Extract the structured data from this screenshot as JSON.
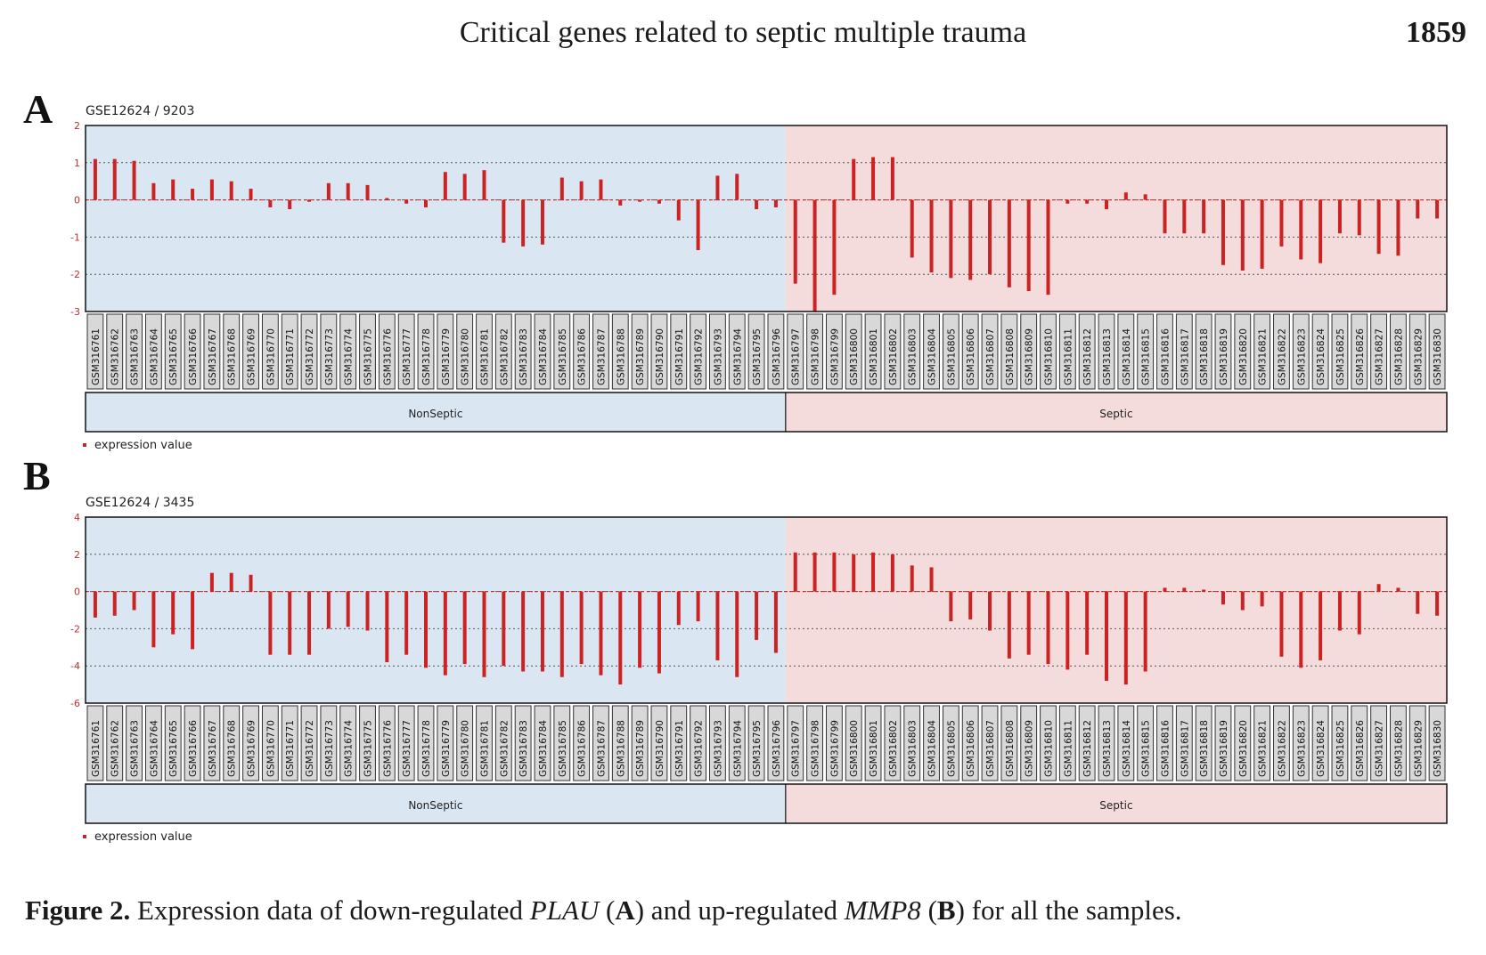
{
  "header": {
    "running_title": "Critical genes related to septic multiple trauma",
    "page_number": "1859"
  },
  "caption": {
    "figure_label": "Figure 2.",
    "text_1": " Expression data of down-regulated ",
    "gene_1": "PLAU",
    "text_2": " (",
    "letter_1": "A",
    "text_3": ") and up-regulated ",
    "gene_2": "MMP8",
    "text_4": " (",
    "letter_2": "B",
    "text_5": ") for all the samples."
  },
  "colors": {
    "nonseptic_bg": "#dbe6f3",
    "septic_bg": "#f4dcdc",
    "bar": "#cc2222",
    "label_box": "#d8d8d8"
  },
  "chart_data": [
    {
      "panel": "A",
      "type": "bar",
      "title": "GSE12624 / 9203",
      "legend": "expression value",
      "legend_position": "bottom-left",
      "grid": true,
      "ylim": [
        -3,
        2
      ],
      "yticks": [
        "2",
        "1",
        "0",
        "-1",
        "-2",
        "-3"
      ],
      "groups": [
        {
          "name": "NonSeptic",
          "count": 36
        },
        {
          "name": "Septic",
          "count": 34
        }
      ],
      "categories": [
        "GSM316761",
        "GSM316762",
        "GSM316763",
        "GSM316764",
        "GSM316765",
        "GSM316766",
        "GSM316767",
        "GSM316768",
        "GSM316769",
        "GSM316770",
        "GSM316771",
        "GSM316772",
        "GSM316773",
        "GSM316774",
        "GSM316775",
        "GSM316776",
        "GSM316777",
        "GSM316778",
        "GSM316779",
        "GSM316780",
        "GSM316781",
        "GSM316782",
        "GSM316783",
        "GSM316784",
        "GSM316785",
        "GSM316786",
        "GSM316787",
        "GSM316788",
        "GSM316789",
        "GSM316790",
        "GSM316791",
        "GSM316792",
        "GSM316793",
        "GSM316794",
        "GSM316795",
        "GSM316796",
        "GSM316797",
        "GSM316798",
        "GSM316799",
        "GSM316800",
        "GSM316801",
        "GSM316802",
        "GSM316803",
        "GSM316804",
        "GSM316805",
        "GSM316806",
        "GSM316807",
        "GSM316808",
        "GSM316809",
        "GSM316810",
        "GSM316811",
        "GSM316812",
        "GSM316813",
        "GSM316814",
        "GSM316815",
        "GSM316816",
        "GSM316817",
        "GSM316818",
        "GSM316819",
        "GSM316820",
        "GSM316821",
        "GSM316822",
        "GSM316823",
        "GSM316824",
        "GSM316825",
        "GSM316826",
        "GSM316827",
        "GSM316828",
        "GSM316829",
        "GSM316830"
      ],
      "values": [
        1.1,
        1.1,
        1.05,
        0.45,
        0.55,
        0.3,
        0.55,
        0.5,
        0.3,
        -0.2,
        -0.25,
        -0.05,
        0.45,
        0.45,
        0.4,
        0.05,
        -0.1,
        -0.2,
        0.75,
        0.7,
        0.8,
        -1.15,
        -1.25,
        -1.2,
        0.6,
        0.5,
        0.55,
        -0.15,
        -0.05,
        -0.1,
        -0.55,
        -1.35,
        0.65,
        0.7,
        -0.25,
        -0.2,
        -2.25,
        -3.0,
        -2.55,
        1.1,
        1.15,
        1.15,
        -1.55,
        -1.95,
        -2.1,
        -2.15,
        -2.0,
        -2.35,
        -2.45,
        -2.55,
        -0.1,
        -0.1,
        -0.25,
        0.2,
        0.15,
        -0.9,
        -0.9,
        -0.9,
        -1.75,
        -1.9,
        -1.85,
        -1.25,
        -1.6,
        -1.7,
        -0.9,
        -0.95,
        -1.45,
        -1.5,
        -0.5,
        -0.5
      ]
    },
    {
      "panel": "B",
      "type": "bar",
      "title": "GSE12624 / 3435",
      "legend": "expression value",
      "legend_position": "bottom-left",
      "grid": true,
      "ylim": [
        -6,
        4
      ],
      "yticks": [
        "4",
        "2",
        "0",
        "-2",
        "-4",
        "-6"
      ],
      "groups": [
        {
          "name": "NonSeptic",
          "count": 36
        },
        {
          "name": "Septic",
          "count": 34
        }
      ],
      "categories": [
        "GSM316761",
        "GSM316762",
        "GSM316763",
        "GSM316764",
        "GSM316765",
        "GSM316766",
        "GSM316767",
        "GSM316768",
        "GSM316769",
        "GSM316770",
        "GSM316771",
        "GSM316772",
        "GSM316773",
        "GSM316774",
        "GSM316775",
        "GSM316776",
        "GSM316777",
        "GSM316778",
        "GSM316779",
        "GSM316780",
        "GSM316781",
        "GSM316782",
        "GSM316783",
        "GSM316784",
        "GSM316785",
        "GSM316786",
        "GSM316787",
        "GSM316788",
        "GSM316789",
        "GSM316790",
        "GSM316791",
        "GSM316792",
        "GSM316793",
        "GSM316794",
        "GSM316795",
        "GSM316796",
        "GSM316797",
        "GSM316798",
        "GSM316799",
        "GSM316800",
        "GSM316801",
        "GSM316802",
        "GSM316803",
        "GSM316804",
        "GSM316805",
        "GSM316806",
        "GSM316807",
        "GSM316808",
        "GSM316809",
        "GSM316810",
        "GSM316811",
        "GSM316812",
        "GSM316813",
        "GSM316814",
        "GSM316815",
        "GSM316816",
        "GSM316817",
        "GSM316818",
        "GSM316819",
        "GSM316820",
        "GSM316821",
        "GSM316822",
        "GSM316823",
        "GSM316824",
        "GSM316825",
        "GSM316826",
        "GSM316827",
        "GSM316828",
        "GSM316829",
        "GSM316830"
      ],
      "values": [
        -1.4,
        -1.3,
        -1.0,
        -3.0,
        -2.3,
        -3.1,
        1.0,
        1.0,
        0.9,
        -3.4,
        -3.4,
        -3.4,
        -2.0,
        -1.9,
        -2.1,
        -3.8,
        -3.4,
        -4.1,
        -4.5,
        -3.9,
        -4.6,
        -4.0,
        -4.3,
        -4.3,
        -4.6,
        -3.9,
        -4.5,
        -5.0,
        -4.1,
        -4.4,
        -1.8,
        -1.6,
        -3.7,
        -4.6,
        -2.6,
        -3.3,
        2.1,
        2.1,
        2.1,
        2.0,
        2.1,
        2.0,
        1.4,
        1.3,
        -1.6,
        -1.5,
        -2.1,
        -3.6,
        -3.4,
        -3.9,
        -4.2,
        -3.4,
        -4.8,
        -5.0,
        -4.3,
        0.2,
        0.2,
        0.1,
        -0.7,
        -1.0,
        -0.8,
        -3.5,
        -4.1,
        -3.7,
        -2.1,
        -2.3,
        0.4,
        0.2,
        -1.2,
        -1.3
      ]
    }
  ]
}
